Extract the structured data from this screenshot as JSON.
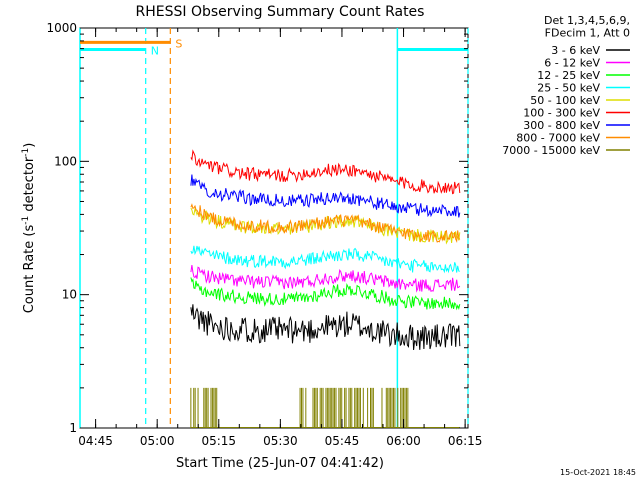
{
  "chart_data": {
    "type": "line",
    "title": "RHESSI Observing Summary Count Rates",
    "xlabel": "Start Time (25-Jun-07 04:41:42)",
    "ylabel_main": "Count Rate (s",
    "ylabel_sup1": "-1",
    "ylabel_mid": " detector",
    "ylabel_sup2": "-1",
    "ylabel_end": ")",
    "x_range_minutes": [
      -0.5,
      94.0
    ],
    "y_scale": "log",
    "ylim": [
      1,
      1000
    ],
    "x_ticks": [
      {
        "t": 3.3,
        "label": "04:45"
      },
      {
        "t": 18.3,
        "label": "05:00"
      },
      {
        "t": 33.3,
        "label": "05:15"
      },
      {
        "t": 48.3,
        "label": "05:30"
      },
      {
        "t": 63.3,
        "label": "05:45"
      },
      {
        "t": 78.3,
        "label": "06:00"
      },
      {
        "t": 93.3,
        "label": "06:15"
      }
    ],
    "y_ticks": [
      {
        "v": 1,
        "label": "1"
      },
      {
        "v": 10,
        "label": "10"
      },
      {
        "v": 100,
        "label": "100"
      },
      {
        "v": 1000,
        "label": "1000"
      }
    ],
    "legend_title": [
      "Det 1,3,4,5,6,9,",
      "FDecim 1, Att 0"
    ],
    "legend_position": "outside-right",
    "series": [
      {
        "name": "3 - 6 keV",
        "color": "#000000",
        "points": [
          [
            26.5,
            7.5
          ],
          [
            28,
            6.8
          ],
          [
            32,
            5.8
          ],
          [
            40,
            5.5
          ],
          [
            50,
            5.4
          ],
          [
            55,
            5.4
          ],
          [
            60,
            5.8
          ],
          [
            66,
            6.0
          ],
          [
            70,
            5.5
          ],
          [
            75,
            5.0
          ],
          [
            80,
            4.8
          ],
          [
            85,
            4.8
          ],
          [
            92,
            4.8
          ]
        ]
      },
      {
        "name": "6 - 12 keV",
        "color": "#ff00ff",
        "points": [
          [
            26.5,
            15.5
          ],
          [
            28,
            14.5
          ],
          [
            32,
            13.5
          ],
          [
            40,
            12.5
          ],
          [
            50,
            12.3
          ],
          [
            55,
            12.5
          ],
          [
            60,
            13.5
          ],
          [
            66,
            14.0
          ],
          [
            70,
            13.2
          ],
          [
            75,
            12.3
          ],
          [
            80,
            11.8
          ],
          [
            85,
            11.8
          ],
          [
            92,
            12.0
          ]
        ]
      },
      {
        "name": "12 - 25 keV",
        "color": "#00ff00",
        "points": [
          [
            26.5,
            12.0
          ],
          [
            28,
            11.2
          ],
          [
            32,
            10.2
          ],
          [
            40,
            9.5
          ],
          [
            50,
            9.2
          ],
          [
            55,
            9.5
          ],
          [
            60,
            10.5
          ],
          [
            66,
            11.0
          ],
          [
            70,
            10.2
          ],
          [
            75,
            9.3
          ],
          [
            80,
            8.8
          ],
          [
            85,
            8.6
          ],
          [
            92,
            8.6
          ]
        ]
      },
      {
        "name": "25 - 50 keV",
        "color": "#00ffff",
        "points": [
          [
            26.5,
            23.0
          ],
          [
            28,
            21.5
          ],
          [
            32,
            19.5
          ],
          [
            40,
            18.0
          ],
          [
            50,
            17.8
          ],
          [
            55,
            18.2
          ],
          [
            60,
            19.5
          ],
          [
            66,
            20.0
          ],
          [
            70,
            19.0
          ],
          [
            75,
            17.5
          ],
          [
            80,
            16.5
          ],
          [
            85,
            16.0
          ],
          [
            92,
            16.0
          ]
        ]
      },
      {
        "name": "50 - 100 keV",
        "color": "#dddd00",
        "points": [
          [
            26.5,
            45.0
          ],
          [
            28,
            40.0
          ],
          [
            32,
            36.0
          ],
          [
            40,
            32.0
          ],
          [
            50,
            31.0
          ],
          [
            55,
            32.5
          ],
          [
            60,
            35.0
          ],
          [
            66,
            35.5
          ],
          [
            70,
            33.0
          ],
          [
            75,
            30.0
          ],
          [
            80,
            28.0
          ],
          [
            85,
            27.0
          ],
          [
            92,
            27.0
          ]
        ]
      },
      {
        "name": "100 - 300 keV",
        "color": "#ff0000",
        "points": [
          [
            26.5,
            110.0
          ],
          [
            28,
            100.0
          ],
          [
            32,
            90.0
          ],
          [
            40,
            80.0
          ],
          [
            50,
            78.0
          ],
          [
            55,
            82.0
          ],
          [
            60,
            86.0
          ],
          [
            66,
            86.0
          ],
          [
            70,
            80.0
          ],
          [
            75,
            72.0
          ],
          [
            80,
            67.0
          ],
          [
            85,
            64.0
          ],
          [
            92,
            64.0
          ]
        ]
      },
      {
        "name": "300 - 800 keV",
        "color": "#0000ff",
        "points": [
          [
            26.5,
            72.0
          ],
          [
            28,
            66.0
          ],
          [
            32,
            58.0
          ],
          [
            40,
            53.0
          ],
          [
            50,
            50.0
          ],
          [
            55,
            51.0
          ],
          [
            60,
            53.0
          ],
          [
            66,
            53.0
          ],
          [
            70,
            50.0
          ],
          [
            75,
            46.0
          ],
          [
            80,
            44.0
          ],
          [
            85,
            43.0
          ],
          [
            92,
            42.5
          ]
        ]
      },
      {
        "name": "800 - 7000 keV",
        "color": "#ff8c00",
        "points": [
          [
            26.5,
            47.0
          ],
          [
            28,
            43.0
          ],
          [
            32,
            37.0
          ],
          [
            40,
            33.0
          ],
          [
            50,
            32.0
          ],
          [
            55,
            33.5
          ],
          [
            60,
            35.5
          ],
          [
            66,
            36.0
          ],
          [
            70,
            33.5
          ],
          [
            75,
            30.5
          ],
          [
            80,
            28.5
          ],
          [
            85,
            27.5
          ],
          [
            92,
            27.5
          ]
        ]
      },
      {
        "name": "7000 - 15000 keV",
        "color": "#808000",
        "points": [
          [
            26.5,
            2.0
          ],
          [
            33,
            2.0
          ],
          [
            45,
            1.0
          ],
          [
            54,
            2.0
          ],
          [
            70,
            2.0
          ],
          [
            79,
            2.0
          ],
          [
            86,
            1.0
          ],
          [
            92,
            1.0
          ]
        ]
      }
    ],
    "flags": [
      {
        "label": "S",
        "color": "#ff8c00",
        "y": 780,
        "t_start": -0.5,
        "t_end": 21.5
      },
      {
        "label": "N",
        "color": "#00ffff",
        "y": 690,
        "t_start": -0.5,
        "t_end": 15.5
      },
      {
        "label": "",
        "color": "#00ffff",
        "y": 690,
        "t_start": 76.8,
        "t_end": 94.0
      }
    ],
    "vlines_dashed": [
      {
        "t": 15.5,
        "color": "#00ffff"
      },
      {
        "t": 21.5,
        "color": "#ff8c00"
      },
      {
        "t": 94.0,
        "color": "#00ffff"
      }
    ],
    "vlines_solid": [
      {
        "t": -0.5,
        "color": "#00ffff"
      },
      {
        "t": 76.8,
        "color": "#00ffff"
      }
    ]
  },
  "timestamp": "15-Oct-2021 18:45"
}
